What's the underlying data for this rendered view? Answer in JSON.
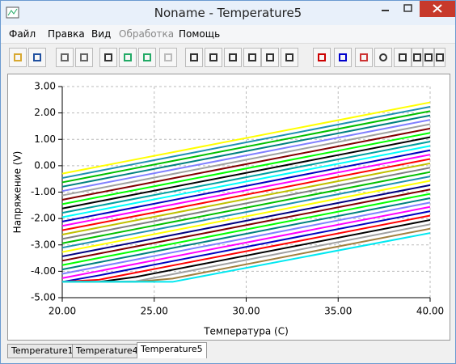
{
  "window": {
    "title": "Noname - Temperature5"
  },
  "menu": [
    "Файл",
    "Правка",
    "Вид",
    "Обработка",
    "Помощь"
  ],
  "tabs": [
    "Temperature1",
    "Temperature4",
    "Temperature5"
  ],
  "chart_data": {
    "type": "line",
    "xlabel": "Температура (С)",
    "ylabel": "Напряжение (V)",
    "x": [
      20,
      22,
      24,
      26,
      40
    ],
    "xlim": [
      20,
      40
    ],
    "ylim": [
      -5,
      3
    ],
    "xticks": [
      {
        "value": 20,
        "label": "20.00"
      },
      {
        "value": 25,
        "label": "25.00"
      },
      {
        "value": 30,
        "label": "30.00"
      },
      {
        "value": 35,
        "label": "35.00"
      },
      {
        "value": 40,
        "label": "40.00"
      }
    ],
    "yticks": [
      {
        "value": 3,
        "label": "3.00"
      },
      {
        "value": 2,
        "label": "2.00"
      },
      {
        "value": 1,
        "label": "1.00"
      },
      {
        "value": 0,
        "label": "0.00"
      },
      {
        "value": -1,
        "label": "-1.00"
      },
      {
        "value": -2,
        "label": "-2.00"
      },
      {
        "value": -3,
        "label": "-3.00"
      },
      {
        "value": -4,
        "label": "-4.00"
      },
      {
        "value": -5,
        "label": "-5.00"
      }
    ],
    "grid": true,
    "series": [
      {
        "color": "#ffff00",
        "values": [
          -0.3,
          -0.03,
          0.24,
          0.51,
          2.4
        ]
      },
      {
        "color": "#1e8fb0",
        "values": [
          -0.465,
          -0.195,
          0.075,
          0.345,
          2.235
        ]
      },
      {
        "color": "#00c000",
        "values": [
          -0.63,
          -0.36,
          -0.09,
          0.18,
          2.07
        ]
      },
      {
        "color": "#008080",
        "values": [
          -0.795,
          -0.525,
          -0.255,
          0.015,
          1.905
        ]
      },
      {
        "color": "#8080ff",
        "values": [
          -0.96,
          -0.69,
          -0.42,
          -0.15,
          1.74
        ]
      },
      {
        "color": "#a0a0a0",
        "values": [
          -1.125,
          -0.855,
          -0.585,
          -0.315,
          1.575
        ]
      },
      {
        "color": "#800000",
        "values": [
          -1.29,
          -1.02,
          -0.75,
          -0.48,
          1.41
        ]
      },
      {
        "color": "#00ff00",
        "values": [
          -1.455,
          -1.185,
          -0.915,
          -0.645,
          1.245
        ]
      },
      {
        "color": "#000000",
        "values": [
          -1.62,
          -1.35,
          -1.08,
          -0.81,
          1.08
        ]
      },
      {
        "color": "#00a0a0",
        "values": [
          -1.785,
          -1.515,
          -1.245,
          -0.975,
          0.915
        ]
      },
      {
        "color": "#00ffff",
        "values": [
          -1.95,
          -1.68,
          -1.41,
          -1.14,
          0.75
        ]
      },
      {
        "color": "#0000c0",
        "values": [
          -2.115,
          -1.845,
          -1.575,
          -1.305,
          0.585
        ]
      },
      {
        "color": "#ff00ff",
        "values": [
          -2.28,
          -2.01,
          -1.74,
          -1.47,
          0.42
        ]
      },
      {
        "color": "#ff0000",
        "values": [
          -2.445,
          -2.175,
          -1.905,
          -1.635,
          0.255
        ]
      },
      {
        "color": "#c0c000",
        "values": [
          -2.61,
          -2.34,
          -2.07,
          -1.8,
          0.09
        ]
      },
      {
        "color": "#808080",
        "values": [
          -2.775,
          -2.505,
          -2.235,
          -1.965,
          -0.075
        ]
      },
      {
        "color": "#00c000",
        "values": [
          -2.94,
          -2.67,
          -2.4,
          -2.13,
          -0.24
        ]
      },
      {
        "color": "#1e8fb0",
        "values": [
          -3.105,
          -2.835,
          -2.565,
          -2.295,
          -0.405
        ]
      },
      {
        "color": "#ffff00",
        "values": [
          -3.27,
          -3.0,
          -2.73,
          -2.46,
          -0.57
        ]
      },
      {
        "color": "#000080",
        "values": [
          -3.435,
          -3.165,
          -2.895,
          -2.625,
          -0.735
        ]
      },
      {
        "color": "#800000",
        "values": [
          -3.6,
          -3.33,
          -3.06,
          -2.79,
          -0.9
        ]
      },
      {
        "color": "#00ff00",
        "values": [
          -3.765,
          -3.495,
          -3.225,
          -2.955,
          -1.065
        ]
      },
      {
        "color": "#008080",
        "values": [
          -3.93,
          -3.66,
          -3.39,
          -3.12,
          -1.23
        ]
      },
      {
        "color": "#8080ff",
        "values": [
          -4.095,
          -3.825,
          -3.555,
          -3.285,
          -1.395
        ]
      },
      {
        "color": "#ff00ff",
        "values": [
          -4.26,
          -3.99,
          -3.72,
          -3.45,
          -1.56
        ]
      },
      {
        "color": "#0000c0",
        "values": [
          -4.4,
          -4.155,
          -3.885,
          -3.615,
          -1.725
        ]
      },
      {
        "color": "#ff0000",
        "values": [
          -4.4,
          -4.32,
          -4.05,
          -3.78,
          -1.89
        ]
      },
      {
        "color": "#000000",
        "values": [
          -4.4,
          -4.4,
          -4.215,
          -3.945,
          -2.055
        ]
      },
      {
        "color": "#a0a0a0",
        "values": [
          -4.4,
          -4.4,
          -4.38,
          -4.11,
          -2.22
        ]
      },
      {
        "color": "#a08040",
        "values": [
          -4.4,
          -4.4,
          -4.4,
          -4.275,
          -2.385
        ]
      },
      {
        "color": "#00e8f0",
        "values": [
          -4.4,
          -4.4,
          -4.4,
          -4.4,
          -2.55
        ]
      }
    ]
  }
}
